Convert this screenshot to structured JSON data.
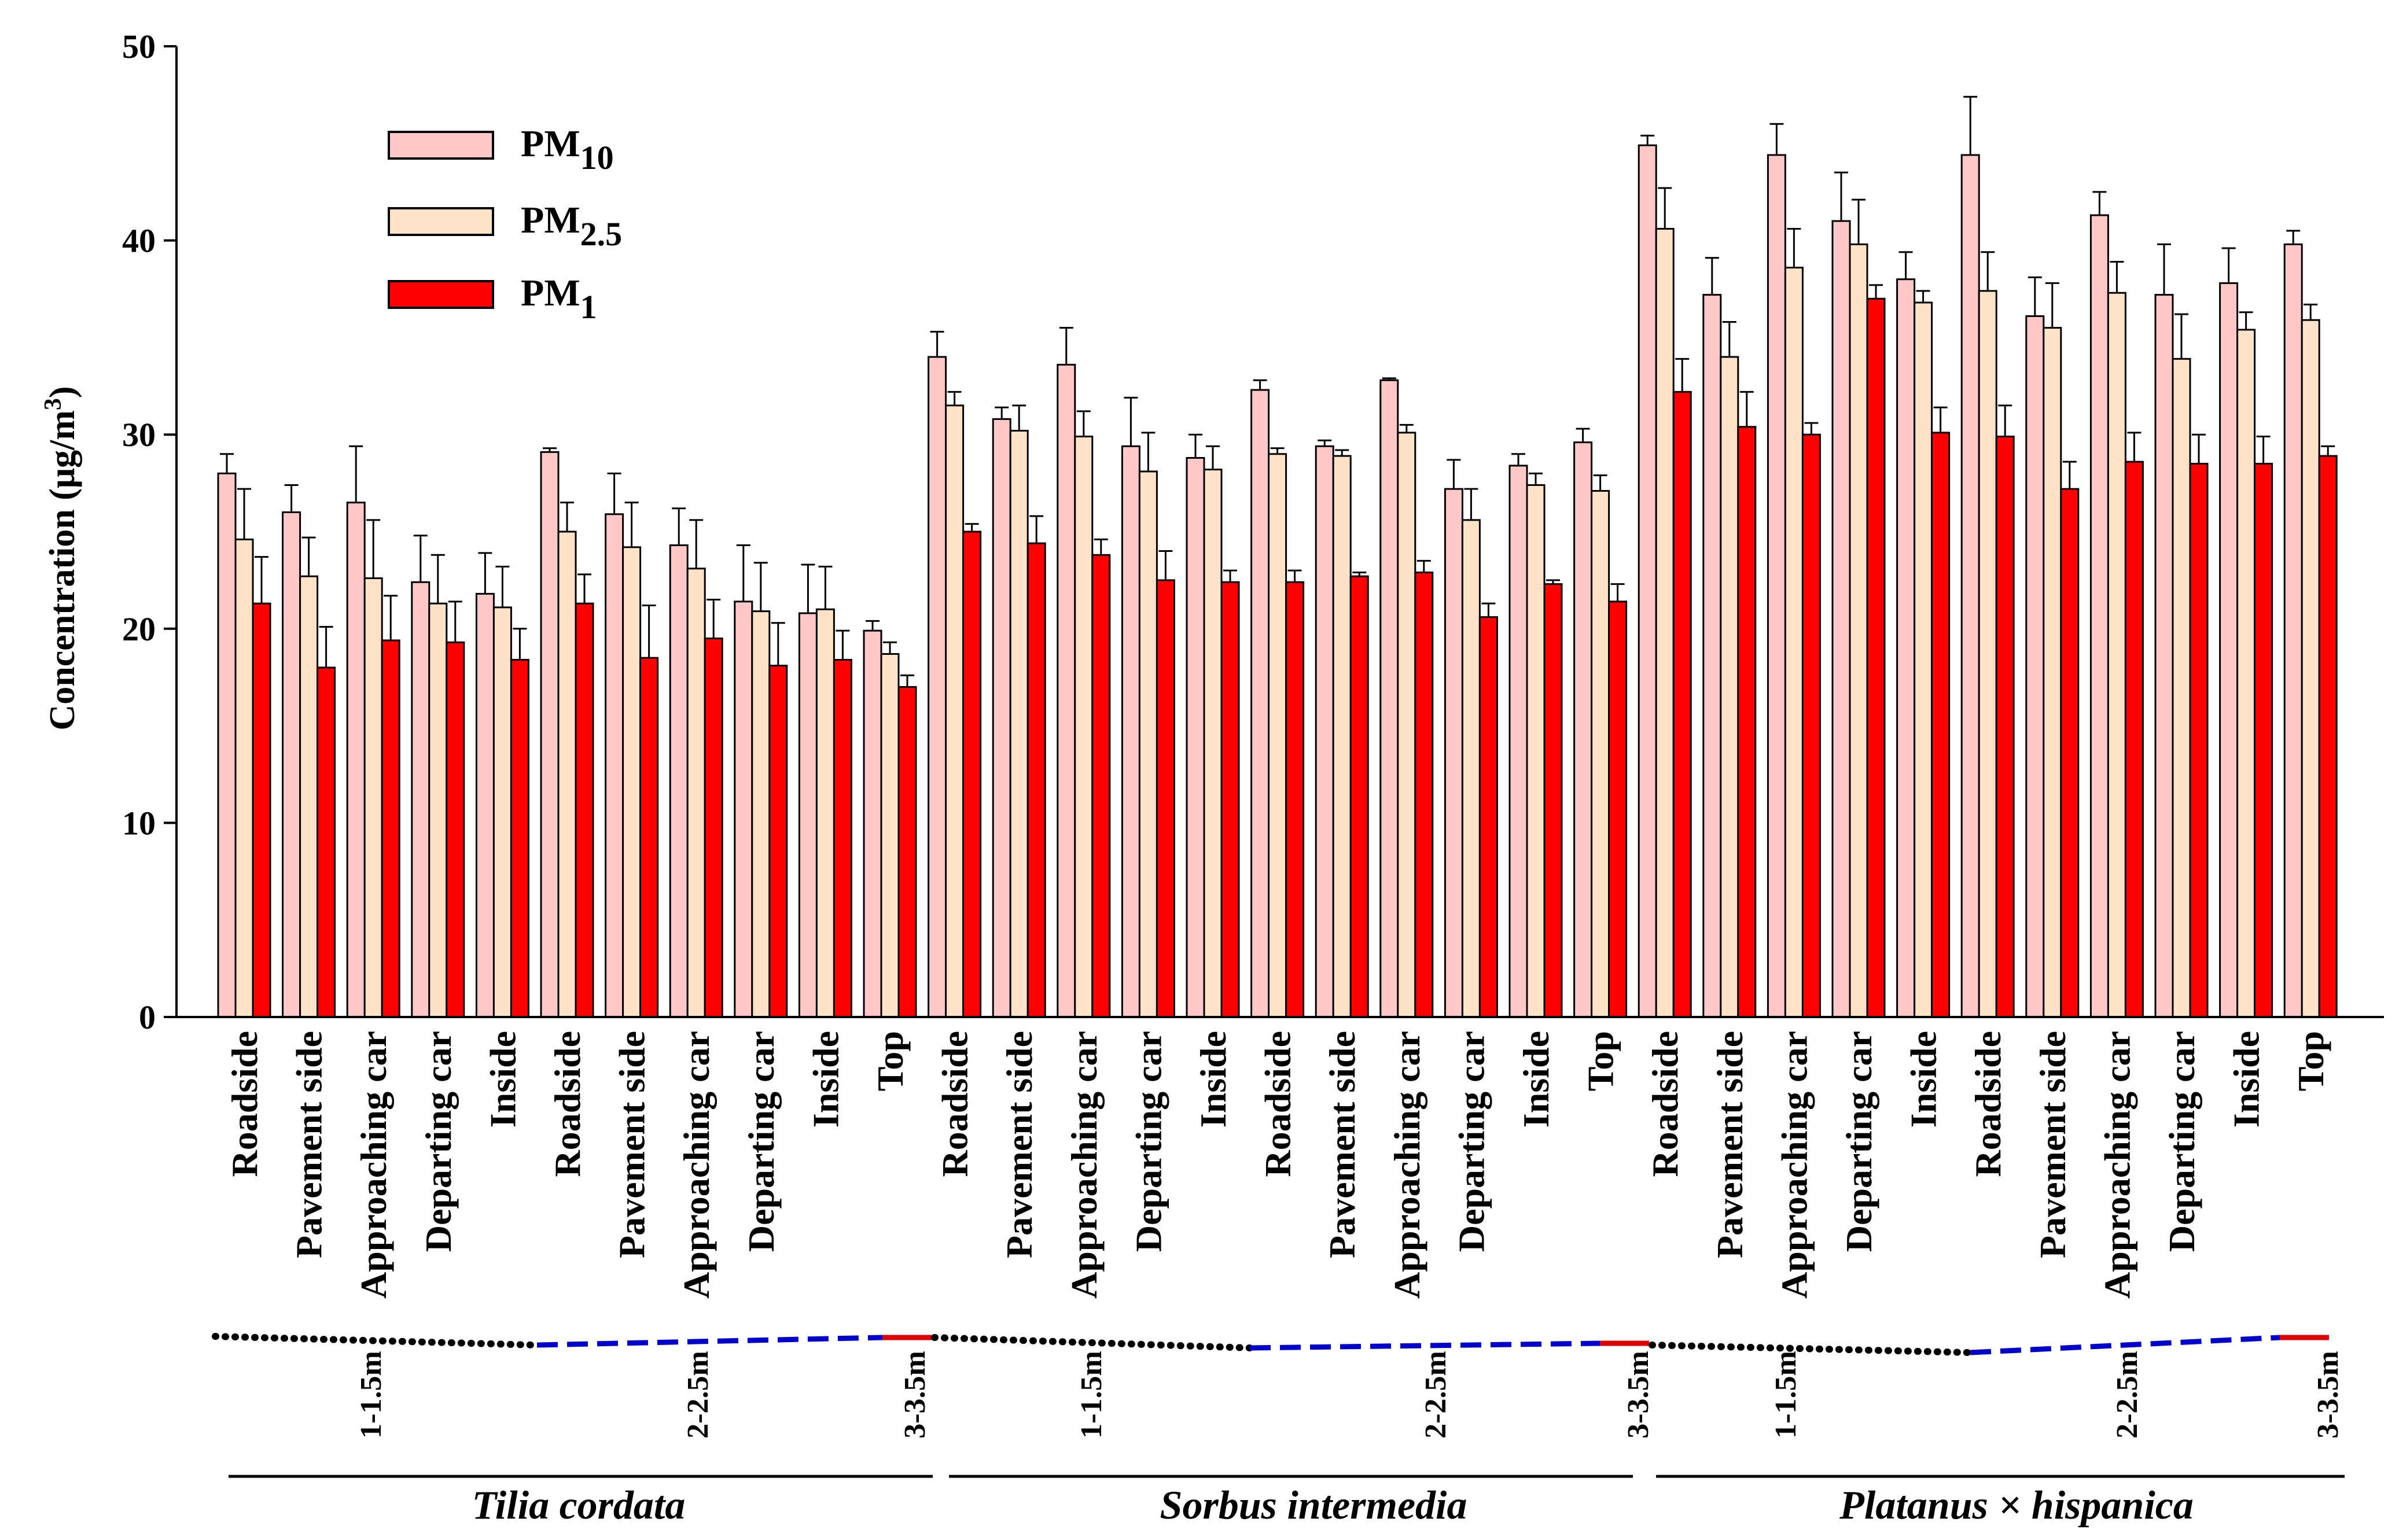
{
  "chart_data": {
    "type": "bar",
    "title": "",
    "xlabel": "",
    "ylabel": "Concentration (μg/m3)",
    "ylabel_parts": {
      "base": "Concentration (μg/m",
      "sup": "3",
      "close": ")"
    },
    "ylim": [
      0,
      50
    ],
    "yticks": [
      0,
      10,
      20,
      30,
      40,
      50
    ],
    "error_bars": true,
    "legend_position": "top-left",
    "categories": [
      "Roadside",
      "Pavement side",
      "Approaching car",
      "Departing car",
      "Inside",
      "Roadside",
      "Pavement side",
      "Approaching car",
      "Departing car",
      "Inside",
      "Top",
      "Roadside",
      "Pavement side",
      "Approaching car",
      "Departing car",
      "Inside",
      "Roadside",
      "Pavement side",
      "Approaching car",
      "Departing car",
      "Inside",
      "Top",
      "Roadside",
      "Pavement side",
      "Approaching car",
      "Departing car",
      "Inside",
      "Roadside",
      "Pavement side",
      "Approaching car",
      "Departing car",
      "Inside",
      "Top"
    ],
    "series": [
      {
        "name": "PM10",
        "label_base": "PM",
        "label_sub": "10",
        "color": "#ffc8c8",
        "values": [
          28.0,
          26.0,
          26.5,
          22.4,
          21.8,
          29.1,
          25.9,
          24.3,
          21.4,
          20.8,
          19.9,
          34.0,
          30.8,
          33.6,
          29.4,
          28.8,
          32.3,
          29.4,
          32.8,
          27.2,
          28.4,
          29.6,
          44.9,
          37.2,
          44.4,
          41.0,
          38.0,
          44.4,
          36.1,
          41.3,
          37.2,
          37.8,
          39.8
        ],
        "errors": [
          1.0,
          1.4,
          2.9,
          2.4,
          2.1,
          0.2,
          2.1,
          1.9,
          2.9,
          2.5,
          0.5,
          1.3,
          0.6,
          1.9,
          2.5,
          1.2,
          0.5,
          0.3,
          0.1,
          1.5,
          0.6,
          0.7,
          0.5,
          1.9,
          1.6,
          2.5,
          1.4,
          3.0,
          2.0,
          1.2,
          2.6,
          1.8,
          0.7
        ]
      },
      {
        "name": "PM2.5",
        "label_base": "PM",
        "label_sub": "2.5",
        "color": "#ffe3c8",
        "values": [
          24.6,
          22.7,
          22.6,
          21.3,
          21.1,
          25.0,
          24.2,
          23.1,
          20.9,
          21.0,
          18.7,
          31.5,
          30.2,
          29.9,
          28.1,
          28.2,
          29.0,
          28.9,
          30.1,
          25.6,
          27.4,
          27.1,
          40.6,
          34.0,
          38.6,
          39.8,
          36.8,
          37.4,
          35.5,
          37.3,
          33.9,
          35.4,
          35.9
        ],
        "errors": [
          2.6,
          2.0,
          3.0,
          2.5,
          2.1,
          1.5,
          2.3,
          2.5,
          2.5,
          2.2,
          0.6,
          0.7,
          1.3,
          1.3,
          2.0,
          1.2,
          0.3,
          0.3,
          0.4,
          1.6,
          0.6,
          0.8,
          2.1,
          1.8,
          2.0,
          2.3,
          0.6,
          2.0,
          2.3,
          1.6,
          2.3,
          0.9,
          0.8
        ]
      },
      {
        "name": "PM1",
        "label_base": "PM",
        "label_sub": "1",
        "color": "#ff0000",
        "values": [
          21.3,
          18.0,
          19.4,
          19.3,
          18.4,
          21.3,
          18.5,
          19.5,
          18.1,
          18.4,
          17.0,
          25.0,
          24.4,
          23.8,
          22.5,
          22.4,
          22.4,
          22.7,
          22.9,
          20.6,
          22.3,
          21.4,
          32.2,
          30.4,
          30.0,
          37.0,
          30.1,
          29.9,
          27.2,
          28.6,
          28.5,
          28.5,
          28.9
        ],
        "errors": [
          2.4,
          2.1,
          2.3,
          2.1,
          1.6,
          1.5,
          2.7,
          2.0,
          2.2,
          1.5,
          0.6,
          0.4,
          1.4,
          0.8,
          1.5,
          0.6,
          0.6,
          0.2,
          0.6,
          0.7,
          0.2,
          0.9,
          1.7,
          1.8,
          0.6,
          0.7,
          1.3,
          1.6,
          1.4,
          1.5,
          1.5,
          1.4,
          0.5
        ]
      }
    ],
    "height_labels": [
      "1-1.5m",
      "2-2.5m",
      "3-3.5m",
      "1-1.5m",
      "2-2.5m",
      "3-3.5m",
      "1-1.5m",
      "2-2.5m",
      "3-3.5m"
    ],
    "species": [
      "Tilia cordata",
      "Sorbus intermedia",
      "Platanus × hispanica"
    ],
    "height_line_colors": {
      "low": "#000000",
      "mid": "#0000cc",
      "top": "#dd0000"
    }
  }
}
